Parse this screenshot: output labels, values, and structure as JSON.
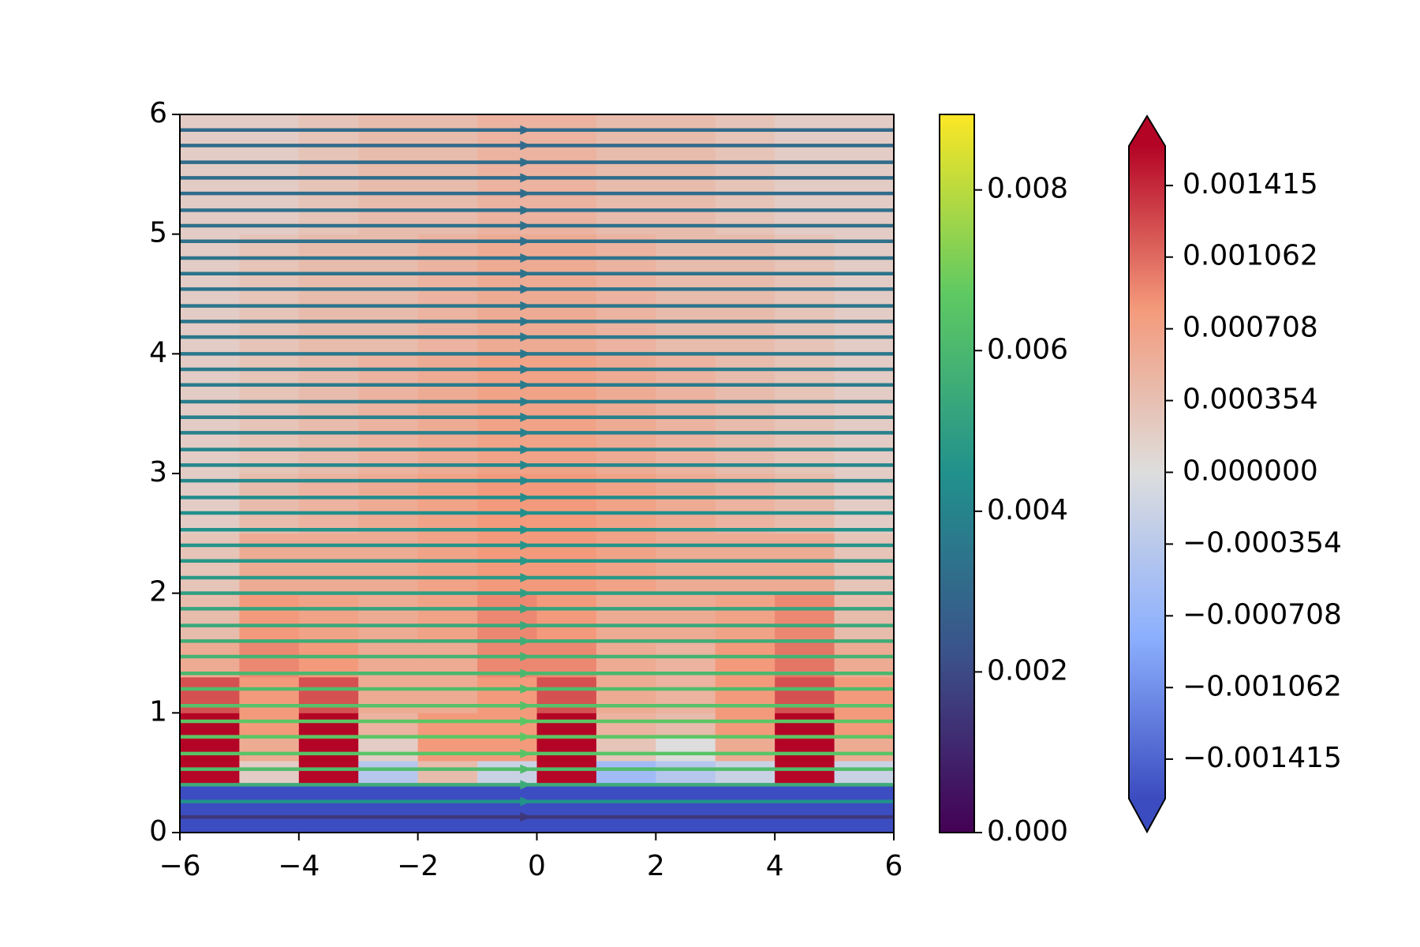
{
  "chart_data": {
    "type": "heatmap_streamplot",
    "x_edges": [
      -6,
      -5,
      -4,
      -3,
      -2,
      -1,
      0,
      1,
      2,
      3,
      4,
      5,
      6
    ],
    "y_edges": [
      0,
      0.4,
      0.6,
      0.8,
      1.0,
      1.3,
      1.6,
      2,
      2.5,
      3,
      4,
      5,
      6
    ],
    "z": [
      [
        -0.0016,
        -0.0016,
        -0.0016,
        -0.0016,
        -0.0016,
        -0.0016,
        -0.0016,
        -0.0016,
        -0.0016,
        -0.0016,
        -0.0016,
        -0.0016
      ],
      [
        0.0016,
        0.0002,
        0.0016,
        -0.0004,
        0.0004,
        -0.0002,
        0.0016,
        -0.0006,
        -0.0004,
        -0.0002,
        0.0016,
        -0.0002
      ],
      [
        0.0018,
        0.0006,
        0.0018,
        0.0002,
        0.0008,
        0.0008,
        0.0018,
        0.0003,
        0.0,
        0.0006,
        0.0018,
        0.0006
      ],
      [
        0.0018,
        0.0008,
        0.0018,
        0.0005,
        0.0008,
        0.0008,
        0.0018,
        0.0005,
        0.0004,
        0.0008,
        0.0018,
        0.0008
      ],
      [
        0.0012,
        0.0008,
        0.0012,
        0.0006,
        0.0006,
        0.0008,
        0.0012,
        0.0006,
        0.0005,
        0.0008,
        0.0012,
        0.0008
      ],
      [
        0.0006,
        0.0009,
        0.0008,
        0.0006,
        0.0006,
        0.0009,
        0.0009,
        0.0006,
        0.0005,
        0.0008,
        0.001,
        0.0006
      ],
      [
        0.0004,
        0.0008,
        0.0007,
        0.0006,
        0.0007,
        0.0009,
        0.0008,
        0.0006,
        0.0006,
        0.0007,
        0.0009,
        0.0004
      ],
      [
        0.0003,
        0.0006,
        0.0006,
        0.0006,
        0.0007,
        0.0008,
        0.0008,
        0.0007,
        0.0006,
        0.0006,
        0.0006,
        0.0003
      ],
      [
        0.0002,
        0.0004,
        0.0005,
        0.0006,
        0.0007,
        0.0008,
        0.0008,
        0.0007,
        0.0006,
        0.0005,
        0.0004,
        0.0002
      ],
      [
        0.0002,
        0.0003,
        0.0004,
        0.0005,
        0.0006,
        0.0007,
        0.0007,
        0.0006,
        0.0005,
        0.0004,
        0.0003,
        0.0002
      ],
      [
        0.0002,
        0.0003,
        0.0004,
        0.0004,
        0.0005,
        0.0006,
        0.0006,
        0.0005,
        0.0004,
        0.0004,
        0.0003,
        0.0002
      ],
      [
        0.0002,
        0.0002,
        0.0003,
        0.0004,
        0.0004,
        0.0005,
        0.0005,
        0.0004,
        0.0004,
        0.0003,
        0.0002,
        0.0002
      ]
    ],
    "colormap": "coolwarm",
    "streamlines": {
      "colormap": "viridis",
      "y": [
        0.13,
        0.26,
        0.4,
        0.53,
        0.66,
        0.8,
        0.93,
        1.06,
        1.2,
        1.33,
        1.47,
        1.6,
        1.73,
        1.87,
        2.0,
        2.13,
        2.27,
        2.4,
        2.53,
        2.67,
        2.8,
        2.94,
        3.07,
        3.2,
        3.34,
        3.47,
        3.6,
        3.74,
        3.87,
        4.0,
        4.14,
        4.27,
        4.4,
        4.54,
        4.67,
        4.8,
        4.94,
        5.07,
        5.2,
        5.34,
        5.47,
        5.6,
        5.74,
        5.87
      ],
      "speed": [
        0.0015,
        0.0045,
        0.0055,
        0.0062,
        0.0065,
        0.0066,
        0.0066,
        0.0064,
        0.0062,
        0.006,
        0.0058,
        0.0056,
        0.0054,
        0.0052,
        0.005,
        0.0048,
        0.0047,
        0.0046,
        0.0045,
        0.0044,
        0.0043,
        0.0042,
        0.0041,
        0.004,
        0.0039,
        0.0039,
        0.0038,
        0.0037,
        0.0037,
        0.0036,
        0.0036,
        0.0035,
        0.0035,
        0.0034,
        0.0034,
        0.0034,
        0.0033,
        0.0033,
        0.0033,
        0.0032,
        0.0032,
        0.0032,
        0.0031,
        0.0031
      ]
    },
    "xlim": [
      -6,
      6
    ],
    "xticks": [
      {
        "value": -6,
        "label": "−6"
      },
      {
        "value": -4,
        "label": "−4"
      },
      {
        "value": -2,
        "label": "−2"
      },
      0,
      2,
      4,
      6
    ],
    "ylim": [
      0,
      6
    ],
    "yticks": [
      0,
      1,
      2,
      3,
      4,
      5,
      6
    ],
    "speed_colorbar": {
      "lim": [
        0,
        0.00894
      ],
      "ticks": [
        {
          "value": 0,
          "label": "0.000"
        },
        {
          "value": 0.002,
          "label": "0.002"
        },
        {
          "value": 0.004,
          "label": "0.004"
        },
        {
          "value": 0.006,
          "label": "0.006"
        },
        {
          "value": 0.008,
          "label": "0.008"
        }
      ]
    },
    "value_colorbar": {
      "lim": [
        -0.00161,
        0.00161
      ],
      "extend": "both",
      "ticks": [
        {
          "value": -0.001415,
          "label": "−0.001415"
        },
        {
          "value": -0.001062,
          "label": "−0.001062"
        },
        {
          "value": -0.000708,
          "label": "−0.000708"
        },
        {
          "value": -0.000354,
          "label": "−0.000354"
        },
        {
          "value": 0,
          "label": "0.000000"
        },
        0.000354,
        0.000708,
        0.001062,
        0.001415
      ]
    }
  }
}
